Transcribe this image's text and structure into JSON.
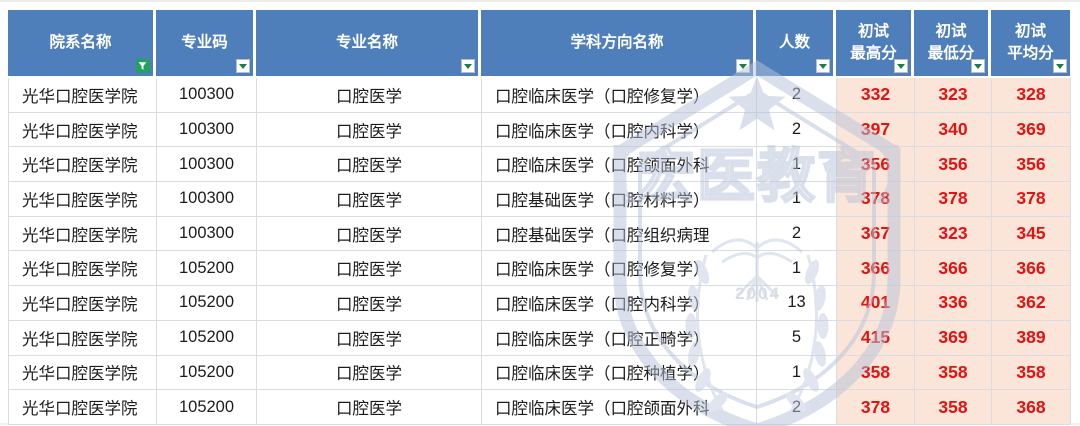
{
  "table": {
    "columns": [
      {
        "label": "院系名称",
        "filter": "active"
      },
      {
        "label": "专业码",
        "filter": "dropdown"
      },
      {
        "label": "专业名称",
        "filter": "dropdown"
      },
      {
        "label": "学科方向名称",
        "filter": "dropdown"
      },
      {
        "label": "人数",
        "filter": "dropdown"
      },
      {
        "label": "初试",
        "label2": "最高分",
        "filter": "dropdown"
      },
      {
        "label": "初试",
        "label2": "最低分",
        "filter": "dropdown"
      },
      {
        "label": "初试",
        "label2": "平均分",
        "filter": "dropdown"
      }
    ],
    "rows": [
      [
        "光华口腔医学院",
        "100300",
        "口腔医学",
        "口腔临床医学（口腔修复学）",
        "2",
        "332",
        "323",
        "328"
      ],
      [
        "光华口腔医学院",
        "100300",
        "口腔医学",
        "口腔临床医学（口腔内科学）",
        "2",
        "397",
        "340",
        "369"
      ],
      [
        "光华口腔医学院",
        "100300",
        "口腔医学",
        "口腔临床医学（口腔颌面外科",
        "1",
        "356",
        "356",
        "356"
      ],
      [
        "光华口腔医学院",
        "100300",
        "口腔医学",
        "口腔基础医学（口腔材料学）",
        "1",
        "378",
        "378",
        "378"
      ],
      [
        "光华口腔医学院",
        "100300",
        "口腔医学",
        "口腔基础医学（口腔组织病理",
        "2",
        "367",
        "323",
        "345"
      ],
      [
        "光华口腔医学院",
        "105200",
        "口腔医学",
        "口腔临床医学（口腔修复学）",
        "1",
        "366",
        "366",
        "366"
      ],
      [
        "光华口腔医学院",
        "105200",
        "口腔医学",
        "口腔临床医学（口腔内科学）",
        "13",
        "401",
        "336",
        "362"
      ],
      [
        "光华口腔医学院",
        "105200",
        "口腔医学",
        "口腔临床医学（口腔正畸学）",
        "5",
        "415",
        "369",
        "389"
      ],
      [
        "光华口腔医学院",
        "105200",
        "口腔医学",
        "口腔临床医学（口腔种植学）",
        "1",
        "358",
        "358",
        "358"
      ],
      [
        "光华口腔医学院",
        "105200",
        "口腔医学",
        "口腔临床医学（口腔颌面外科",
        "2",
        "378",
        "358",
        "368"
      ]
    ]
  },
  "watermark": {
    "text": "【宏医教育】",
    "year": "2004"
  },
  "colors": {
    "header_bg": "#4f7fba",
    "header_text": "#ffffff",
    "score_bg": "#fbe5d8",
    "score_text": "#e11414",
    "filter_green": "#21a35f",
    "watermark": "#b7c3d8"
  }
}
